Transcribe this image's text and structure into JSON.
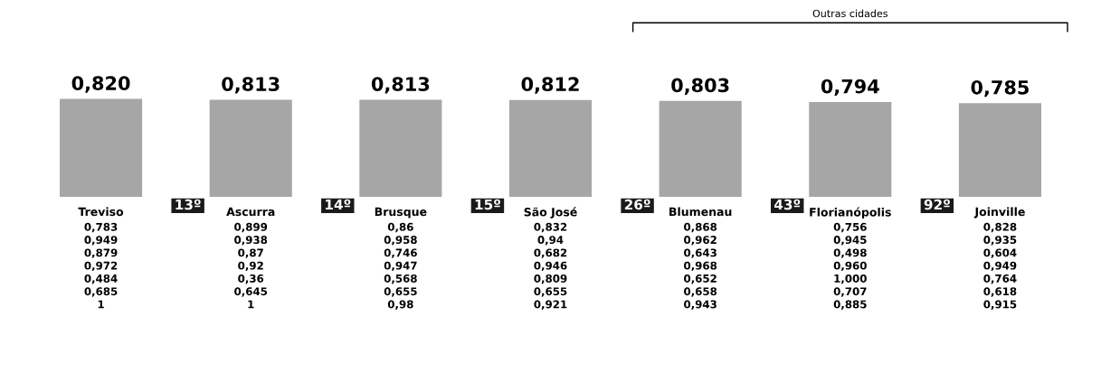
{
  "chart_data": {
    "type": "bar",
    "categories": [
      "Treviso",
      "Ascurra",
      "Brusque",
      "São José",
      "Blumenau",
      "Florianópolis",
      "Joinville"
    ],
    "series": [
      {
        "color": "#a6a6a6",
        "values": [
          0.82,
          0.813,
          0.813,
          0.812,
          0.803,
          0.794,
          0.785
        ],
        "value_labels": [
          "0,820",
          "0,813",
          "0,813",
          "0,812",
          "0,803",
          "0,794",
          "0,785"
        ]
      }
    ],
    "tick_labels": "x",
    "annotations": [
      "Outras cidades",
      "13º",
      "14º",
      "15º",
      "26º",
      "43º",
      "92º",
      "0,783",
      "0,949",
      "0,879",
      "0,972",
      "0,484",
      "0,685",
      "1",
      "0,899",
      "0,938",
      "0,87",
      "0,92",
      "0,36",
      "0,645",
      "1",
      "0,86",
      "0,958",
      "0,746",
      "0,947",
      "0,568",
      "0,655",
      "0,98",
      "0,832",
      "0,94",
      "0,682",
      "0,946",
      "0,809",
      "0,655",
      "0,921",
      "0,868",
      "0,962",
      "0,643",
      "0,968",
      "0,652",
      "0,658",
      "0,943",
      "0,756",
      "0,945",
      "0,498",
      "0,960",
      "1,000",
      "0,707",
      "0,885",
      "0,828",
      "0,935",
      "0,604",
      "0,949",
      "0,764",
      "0,618",
      "0,915"
    ]
  }
}
